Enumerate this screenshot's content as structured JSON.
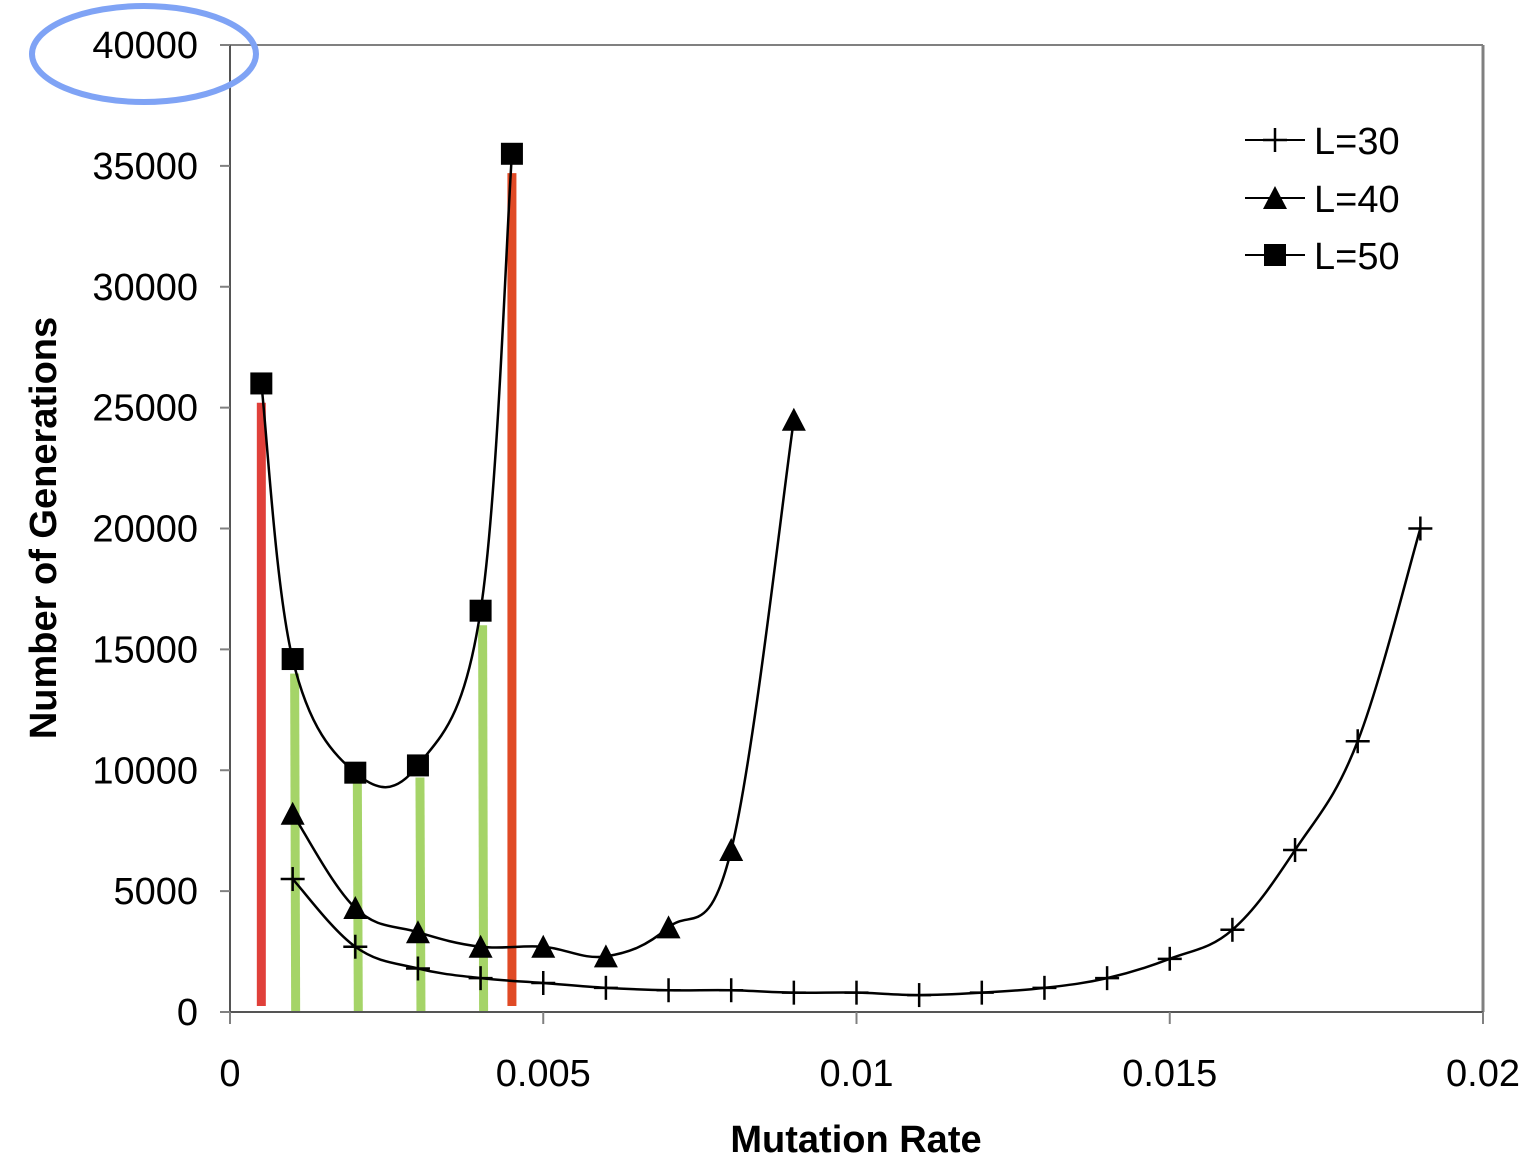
{
  "chart_data": {
    "type": "line",
    "title": "",
    "xlabel": "Mutation Rate",
    "ylabel": "Number of Generations",
    "xlim": [
      0,
      0.02
    ],
    "ylim": [
      0,
      40000
    ],
    "x_ticks": [
      0,
      0.005,
      0.01,
      0.015,
      0.02
    ],
    "x_tick_labels": [
      "0",
      "0.005",
      "0.01",
      "0.015",
      "0.02"
    ],
    "y_ticks": [
      0,
      5000,
      10000,
      15000,
      20000,
      25000,
      30000,
      35000,
      40000
    ],
    "y_tick_labels": [
      "0",
      "5000",
      "10000",
      "15000",
      "20000",
      "25000",
      "30000",
      "35000",
      "40000"
    ],
    "grid": false,
    "legend_position": "top-right",
    "series": [
      {
        "name": "L=30",
        "marker": "plus",
        "x": [
          0.001,
          0.002,
          0.003,
          0.004,
          0.005,
          0.006,
          0.007,
          0.008,
          0.009,
          0.01,
          0.011,
          0.012,
          0.013,
          0.014,
          0.015,
          0.016,
          0.017,
          0.018,
          0.019
        ],
        "values": [
          5500,
          2700,
          1800,
          1400,
          1200,
          1000,
          900,
          900,
          800,
          800,
          700,
          800,
          1000,
          1400,
          2200,
          3400,
          6700,
          11200,
          20000
        ]
      },
      {
        "name": "L=40",
        "marker": "triangle",
        "x": [
          0.001,
          0.002,
          0.003,
          0.004,
          0.005,
          0.006,
          0.007,
          0.008,
          0.009
        ],
        "values": [
          8200,
          4300,
          3300,
          2700,
          2700,
          2300,
          3500,
          6700,
          24500
        ]
      },
      {
        "name": "L=50",
        "marker": "square",
        "x": [
          0.0005,
          0.001,
          0.002,
          0.003,
          0.004,
          0.0045
        ],
        "values": [
          26000,
          14600,
          9900,
          10200,
          16600,
          35500
        ]
      }
    ],
    "annotations": {
      "highlight_ellipse_target": "40000",
      "red_bars": [
        {
          "x": 0.0005,
          "top": 25200
        },
        {
          "x": 0.0045,
          "top": 34700
        }
      ],
      "green_bars": [
        {
          "x": 0.001,
          "top": 14000
        },
        {
          "x": 0.002,
          "top": 9800
        },
        {
          "x": 0.003,
          "top": 9700
        },
        {
          "x": 0.004,
          "top": 16000
        }
      ]
    },
    "colors": {
      "series_line": "#000000",
      "axis": "#808080",
      "red_bar_left": "#e0403a",
      "red_bar_right": "#e04a25",
      "green_bar": "#a5d468",
      "ellipse": "#7fa3f5"
    }
  }
}
